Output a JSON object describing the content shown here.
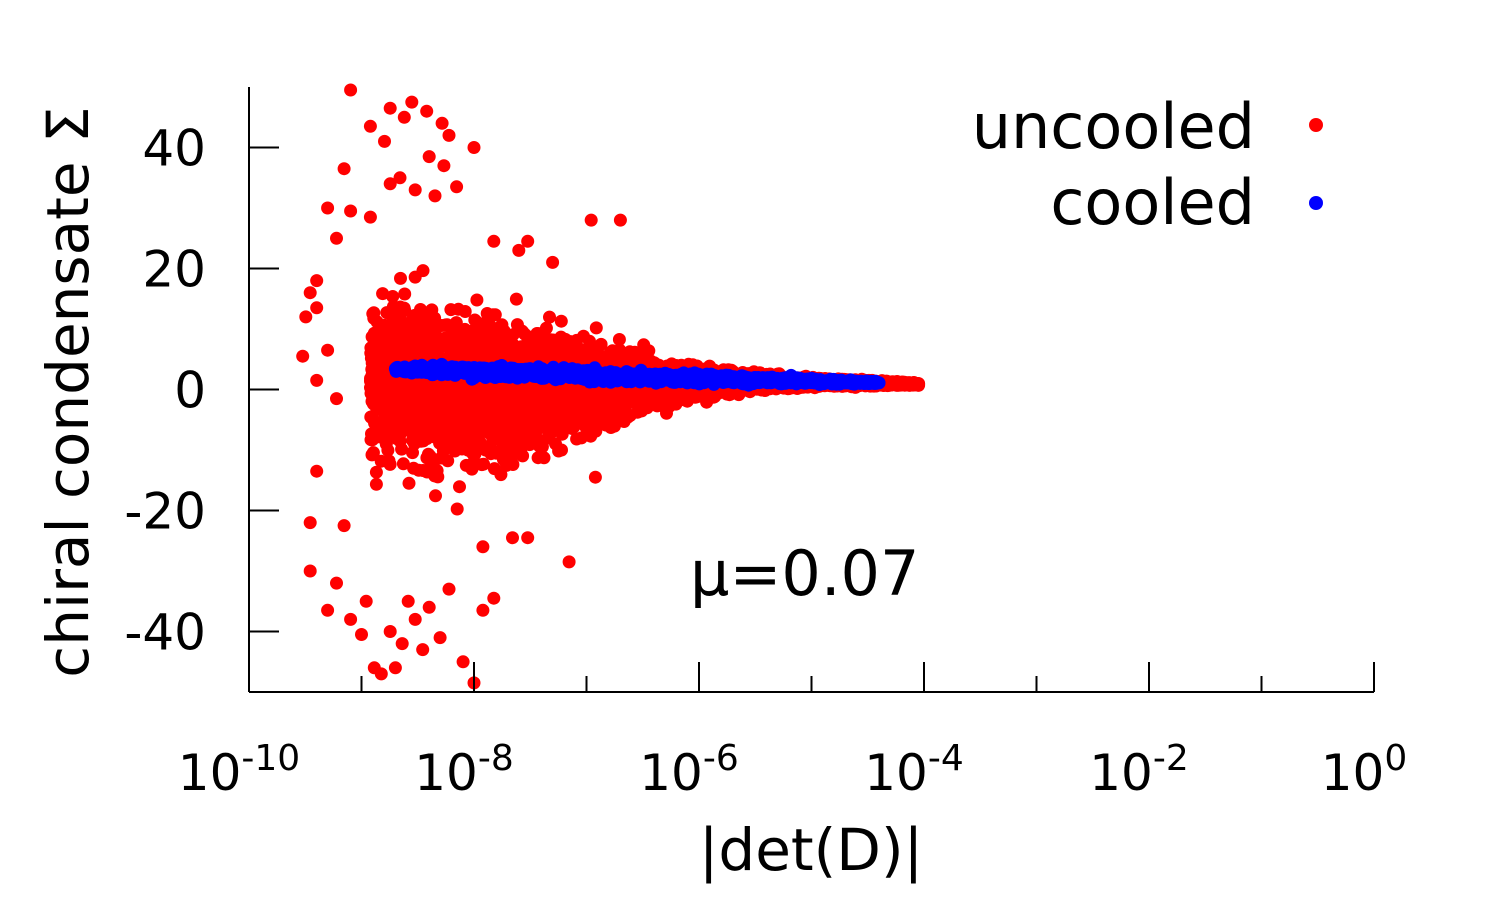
{
  "chart_data": {
    "type": "scatter",
    "xscale": "log",
    "xlim": [
      1e-10,
      1
    ],
    "ylim": [
      -50,
      50
    ],
    "xlabel": "|det(D)|",
    "ylabel": "chiral condensate  Σ",
    "annotation": "μ=0.07",
    "legend_position": "top-right",
    "grid": false,
    "x_ticks": [
      {
        "base": "10",
        "exp": "-10",
        "value": 1e-10
      },
      {
        "base": "10",
        "exp": "-8",
        "value": 1e-08
      },
      {
        "base": "10",
        "exp": "-6",
        "value": 1e-06
      },
      {
        "base": "10",
        "exp": "-4",
        "value": 0.0001
      },
      {
        "base": "10",
        "exp": "-2",
        "value": 0.01
      },
      {
        "base": "10",
        "exp": "0",
        "value": 1
      }
    ],
    "y_ticks": [
      {
        "label": "40",
        "value": 40
      },
      {
        "label": "20",
        "value": 20
      },
      {
        "label": "0",
        "value": 0
      },
      {
        "label": "-20",
        "value": -20
      },
      {
        "label": "-40",
        "value": -40
      }
    ],
    "series": [
      {
        "name": "uncooled",
        "color": "#ff0000",
        "points": [
          [
            8e-10,
            49.5
          ],
          [
            2.8e-09,
            47.5
          ],
          [
            1.8e-09,
            46.5
          ],
          [
            3.8e-09,
            46
          ],
          [
            2.4e-09,
            45
          ],
          [
            1.2e-09,
            43.5
          ],
          [
            5.2e-09,
            44
          ],
          [
            6e-09,
            42
          ],
          [
            1.6e-09,
            41
          ],
          [
            1e-08,
            40
          ],
          [
            4e-09,
            38.5
          ],
          [
            5.4e-09,
            37
          ],
          [
            7e-10,
            36.5
          ],
          [
            2.2e-09,
            35
          ],
          [
            1.8e-09,
            34
          ],
          [
            7e-09,
            33.5
          ],
          [
            3e-09,
            33
          ],
          [
            4.5e-09,
            32
          ],
          [
            5e-10,
            30
          ],
          [
            8e-10,
            29.5
          ],
          [
            1.2e-09,
            28.5
          ],
          [
            1.1e-07,
            28
          ],
          [
            2e-07,
            28
          ],
          [
            6e-10,
            25
          ],
          [
            1.5e-08,
            24.5
          ],
          [
            3e-08,
            24.5
          ],
          [
            2.5e-08,
            23
          ],
          [
            5e-08,
            21
          ],
          [
            4e-10,
            18
          ],
          [
            3.5e-10,
            16
          ],
          [
            4e-10,
            13.5
          ],
          [
            3.2e-10,
            12
          ],
          [
            3e-10,
            5.5
          ],
          [
            5e-10,
            6.5
          ],
          [
            4e-10,
            1.5
          ],
          [
            6e-10,
            -1.5
          ],
          [
            4e-10,
            -13.5
          ],
          [
            3.5e-10,
            -22
          ],
          [
            7e-10,
            -22.5
          ],
          [
            3.5e-10,
            -30
          ],
          [
            5e-10,
            -36.5
          ],
          [
            6e-10,
            -32
          ],
          [
            8e-10,
            -38
          ],
          [
            1e-09,
            -40.5
          ],
          [
            1.1e-09,
            -35
          ],
          [
            1.3e-09,
            -46
          ],
          [
            1.5e-09,
            -47
          ],
          [
            2e-09,
            -46
          ],
          [
            1.8e-09,
            -40
          ],
          [
            2.3e-09,
            -42
          ],
          [
            2.6e-09,
            -35
          ],
          [
            3e-09,
            -38
          ],
          [
            3.5e-09,
            -43
          ],
          [
            4e-09,
            -36
          ],
          [
            5e-09,
            -41
          ],
          [
            6e-09,
            -33
          ],
          [
            8e-09,
            -45
          ],
          [
            1e-08,
            -48.5
          ],
          [
            1.2e-08,
            -36.5
          ],
          [
            1.5e-08,
            -34.5
          ],
          [
            2.2e-08,
            -24.5
          ],
          [
            3e-08,
            -24.5
          ],
          [
            1.2e-08,
            -26
          ],
          [
            7e-08,
            -28.5
          ],
          [
            1.2e-07,
            -14.5
          ],
          [
            6e-08,
            -10
          ],
          [
            9e-08,
            -8
          ]
        ],
        "body": [
          {
            "x": 1.2e-09,
            "yhi": 22,
            "ylo": -18
          },
          {
            "x": 2e-09,
            "yhi": 24,
            "ylo": -20
          },
          {
            "x": 5e-09,
            "yhi": 22,
            "ylo": -22
          },
          {
            "x": 1e-08,
            "yhi": 20,
            "ylo": -20
          },
          {
            "x": 3e-08,
            "yhi": 17,
            "ylo": -16
          },
          {
            "x": 1e-07,
            "yhi": 12,
            "ylo": -10
          },
          {
            "x": 3e-07,
            "yhi": 8,
            "ylo": -6
          },
          {
            "x": 1e-06,
            "yhi": 5,
            "ylo": -2.5
          },
          {
            "x": 3e-06,
            "yhi": 3.5,
            "ylo": -1
          },
          {
            "x": 1e-05,
            "yhi": 2.5,
            "ylo": 0
          },
          {
            "x": 3e-05,
            "yhi": 1.8,
            "ylo": 0.3
          },
          {
            "x": 9e-05,
            "yhi": 1.2,
            "ylo": 0.6
          }
        ]
      },
      {
        "name": "cooled",
        "color": "#0000ff",
        "body": [
          {
            "x": 2e-09,
            "yhi": 4.2,
            "ylo": 2.6
          },
          {
            "x": 1e-08,
            "yhi": 4.4,
            "ylo": 1.6
          },
          {
            "x": 1e-07,
            "yhi": 3.8,
            "ylo": 1.0
          },
          {
            "x": 1e-06,
            "yhi": 3.0,
            "ylo": 0.6
          },
          {
            "x": 1e-05,
            "yhi": 2.2,
            "ylo": 0.6
          },
          {
            "x": 4e-05,
            "yhi": 1.4,
            "ylo": 0.8
          }
        ]
      }
    ]
  }
}
